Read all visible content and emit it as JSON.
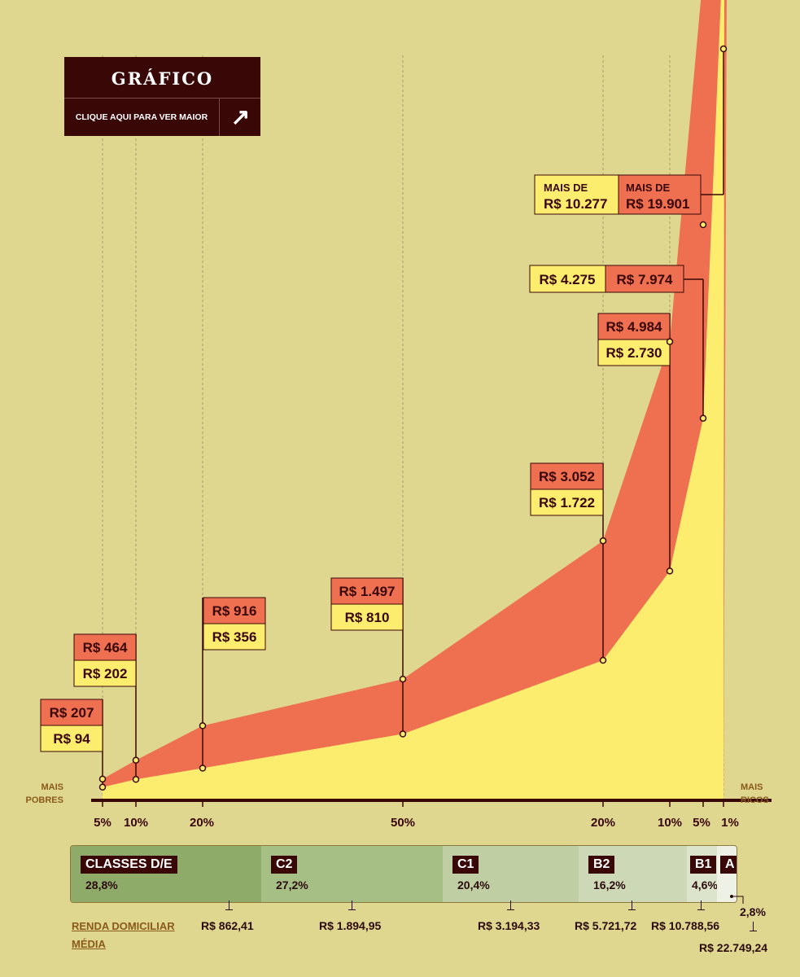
{
  "button": {
    "title": "GRÁFICO",
    "subtitle": "CLIQUE AQUI PARA VER MAIOR",
    "arrow": "↗"
  },
  "axis": {
    "left_label": [
      "MAIS",
      "POBRES"
    ],
    "right_label": [
      "MAIS",
      "RICOS"
    ]
  },
  "colors": {
    "background": "#dfd690",
    "upper": "#ee7050",
    "lower": "#fded6e",
    "dark": "#3a0707"
  },
  "chart_data": {
    "type": "area",
    "title": "GRÁFICO",
    "xlabel": "",
    "ylabel": "",
    "x_ticks": [
      "5%",
      "10%",
      "20%",
      "50%",
      "20%",
      "10%",
      "5%",
      "1%"
    ],
    "series": [
      {
        "name": "red",
        "values": [
          207,
          464,
          916,
          1497,
          3052,
          4984,
          7974,
          19901
        ],
        "labels": [
          "R$ 207",
          "R$ 464",
          "R$ 916",
          "R$ 1.497",
          "R$ 3.052",
          "R$ 4.984",
          "R$ 7.974",
          "R$ 19.901"
        ]
      },
      {
        "name": "yellow",
        "values": [
          94,
          202,
          356,
          810,
          1722,
          2730,
          4275,
          10277
        ],
        "labels": [
          "R$ 94",
          "R$ 202",
          "R$ 356",
          "R$ 810",
          "R$ 1.722",
          "R$ 2.730",
          "R$ 4.275",
          "R$ 10.277"
        ]
      }
    ],
    "top_prefix": "MAIS DE"
  },
  "classes": [
    {
      "name": "CLASSES D/E",
      "pct": "28,8%",
      "income": "R$ 862,41",
      "color": "#8fab6a"
    },
    {
      "name": "C2",
      "pct": "27,2%",
      "income": "R$ 1.894,95",
      "color": "#a6bf85"
    },
    {
      "name": "C1",
      "pct": "20,4%",
      "income": "R$ 3.194,33",
      "color": "#bfcfa3"
    },
    {
      "name": "B2",
      "pct": "16,2%",
      "income": "R$ 5.721,72",
      "color": "#ccd8b6"
    },
    {
      "name": "B1",
      "pct": "4,6%",
      "income": "R$ 10.788,56",
      "color": "#dce5cc"
    },
    {
      "name": "A",
      "pct": "2,8%",
      "income": "R$ 22.749,24",
      "color": "#eef1e6"
    }
  ],
  "renda_label": [
    "RENDA DOMICILIAR",
    "MÉDIA"
  ]
}
